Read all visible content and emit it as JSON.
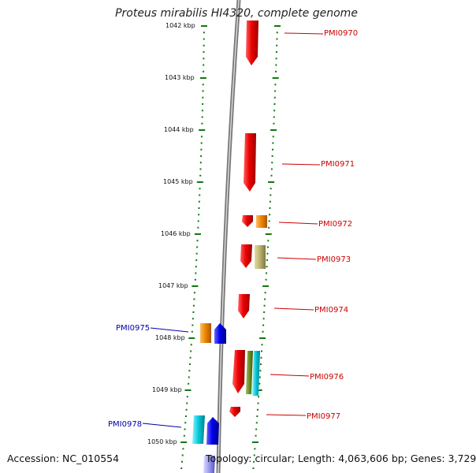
{
  "title": "Proteus mirabilis HI4320, complete genome",
  "footer": {
    "accession": "Accession: NC_010554",
    "topology": "Topology: circular; Length: 4,063,606 bp; Genes: 3,729"
  },
  "scale": {
    "tick_labels": [
      "1042 kbp",
      "1043 kbp",
      "1044 kbp",
      "1045 kbp",
      "1046 kbp",
      "1047 kbp",
      "1048 kbp",
      "1049 kbp",
      "1050 kbp"
    ]
  },
  "gene_labels": [
    {
      "id": "PMI0970",
      "side": "right",
      "color": "#cc0000"
    },
    {
      "id": "PMI0971",
      "side": "right",
      "color": "#cc0000"
    },
    {
      "id": "PMI0972",
      "side": "right",
      "color": "#cc0000"
    },
    {
      "id": "PMI0973",
      "side": "right",
      "color": "#cc0000"
    },
    {
      "id": "PMI0974",
      "side": "right",
      "color": "#cc0000"
    },
    {
      "id": "PMI0975",
      "side": "left",
      "color": "#0000aa"
    },
    {
      "id": "PMI0976",
      "side": "right",
      "color": "#cc0000"
    },
    {
      "id": "PMI0977",
      "side": "right",
      "color": "#cc0000"
    },
    {
      "id": "PMI0978",
      "side": "left",
      "color": "#0000aa"
    }
  ],
  "feature_colors": {
    "red": "#ee0000",
    "orange": "#ee8800",
    "khaki": "#b8b070",
    "olive": "#6b8e23",
    "cyan": "#00c8d8",
    "blue": "#0000ee",
    "lightblue": "#9999ee",
    "backbone": "#888888",
    "ticks": "#117711"
  }
}
